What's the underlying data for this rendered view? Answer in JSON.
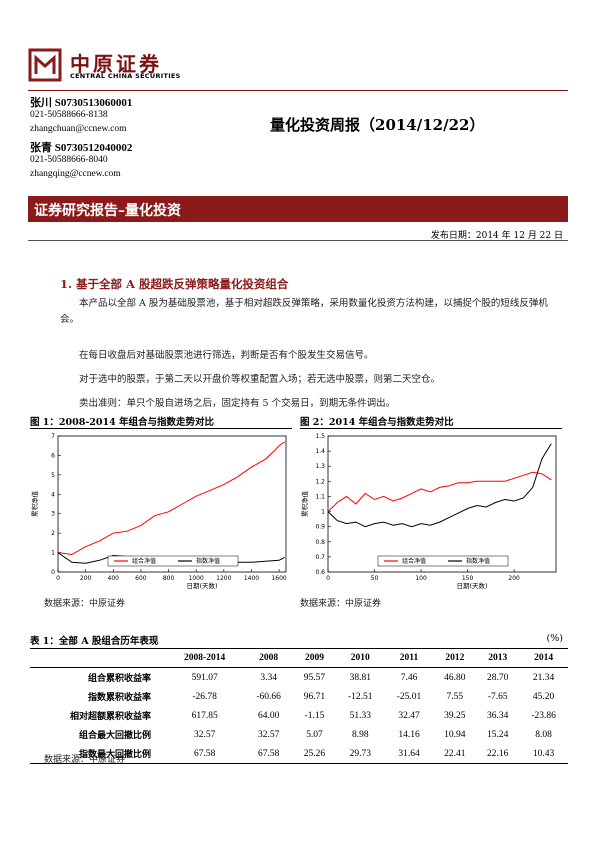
{
  "header": {
    "logo_cn": "中原证券",
    "logo_en": "CENTRAL CHINA SECURITIES",
    "brand_color": "#8b1a1a"
  },
  "analysts": [
    {
      "name": "张川  S0730513060001",
      "phone": "021-50588666-8138",
      "email": "zhangchuan@ccnew.com"
    },
    {
      "name": "张青  S0730512040002",
      "phone": "021-50588666-8040",
      "email": "zhangqing@ccnew.com"
    }
  ],
  "report_title": "量化投资周报（2014/12/22）",
  "banner": "证券研究报告–量化投资",
  "publish_date": "发布日期：2014 年 12 月 22 日",
  "section": {
    "heading": "1. 基于全部 A 股超跌反弹策略量化投资组合",
    "paragraphs": [
      "本产品以全部 A 股为基础股票池，基于相对超跌反弹策略，采用数量化投资方法构建，以捕捉个股的短线反弹机会。",
      "在每日收盘后对基础股票池进行筛选，判断是否有个股发生交易信号。",
      "对于选中的股票，于第二天以开盘价等权重配置入场；若无选中股票，则第二天空仓。",
      "卖出准则：单只个股自进场之后，固定持有 5 个交易日，到期无条件调出。"
    ]
  },
  "figures": {
    "fig1_title": "图 1：2008-2014 年组合与指数走势对比",
    "fig2_title": "图 2：2014 年组合与指数走势对比",
    "source": "数据来源：中原证券"
  },
  "chart_data": [
    {
      "type": "line",
      "title": "图 1：2008-2014 年组合与指数走势对比",
      "xlabel": "日期(天数)",
      "ylabel": "累积净值",
      "xlim": [
        0,
        1650
      ],
      "ylim": [
        0,
        7
      ],
      "x_ticks": [
        0,
        200,
        400,
        600,
        800,
        1000,
        1200,
        1400,
        1600
      ],
      "y_ticks": [
        0,
        1,
        2,
        3,
        4,
        5,
        6,
        7
      ],
      "grid": false,
      "legend_position": "bottom-center",
      "series": [
        {
          "name": "组合净值",
          "color": "#ff0000",
          "x": [
            0,
            100,
            200,
            300,
            400,
            500,
            600,
            700,
            800,
            900,
            1000,
            1100,
            1200,
            1300,
            1400,
            1500,
            1560,
            1600,
            1640
          ],
          "y": [
            1.0,
            0.9,
            1.3,
            1.6,
            2.0,
            2.1,
            2.4,
            2.9,
            3.1,
            3.5,
            3.9,
            4.2,
            4.5,
            4.9,
            5.4,
            5.8,
            6.2,
            6.5,
            6.7
          ]
        },
        {
          "name": "指数净值",
          "color": "#000000",
          "x": [
            0,
            100,
            200,
            300,
            400,
            500,
            600,
            700,
            800,
            900,
            1000,
            1100,
            1200,
            1300,
            1400,
            1500,
            1600,
            1640
          ],
          "y": [
            1.0,
            0.5,
            0.45,
            0.6,
            0.85,
            0.8,
            0.75,
            0.7,
            0.65,
            0.6,
            0.55,
            0.5,
            0.55,
            0.5,
            0.5,
            0.55,
            0.6,
            0.75
          ]
        }
      ]
    },
    {
      "type": "line",
      "title": "图 2：2014 年组合与指数走势对比",
      "xlabel": "日期(天数)",
      "ylabel": "累积净值",
      "xlim": [
        0,
        245
      ],
      "ylim": [
        0.6,
        1.5
      ],
      "x_ticks": [
        0,
        50,
        100,
        150,
        200
      ],
      "y_ticks": [
        0.6,
        0.7,
        0.8,
        0.9,
        1.0,
        1.1,
        1.2,
        1.3,
        1.4,
        1.5
      ],
      "grid": false,
      "legend_position": "bottom-center",
      "series": [
        {
          "name": "组合净值",
          "color": "#ff0000",
          "x": [
            0,
            10,
            20,
            30,
            40,
            50,
            60,
            70,
            80,
            90,
            100,
            110,
            120,
            130,
            140,
            150,
            160,
            170,
            180,
            190,
            200,
            210,
            220,
            230,
            240
          ],
          "y": [
            1.0,
            1.06,
            1.1,
            1.05,
            1.12,
            1.08,
            1.1,
            1.07,
            1.09,
            1.12,
            1.15,
            1.13,
            1.16,
            1.17,
            1.19,
            1.19,
            1.2,
            1.2,
            1.2,
            1.2,
            1.22,
            1.24,
            1.26,
            1.25,
            1.21
          ]
        },
        {
          "name": "指数净值",
          "color": "#000000",
          "x": [
            0,
            10,
            20,
            30,
            40,
            50,
            60,
            70,
            80,
            90,
            100,
            110,
            120,
            130,
            140,
            150,
            160,
            170,
            180,
            190,
            200,
            210,
            220,
            230,
            240
          ],
          "y": [
            1.0,
            0.94,
            0.92,
            0.93,
            0.9,
            0.92,
            0.93,
            0.91,
            0.92,
            0.9,
            0.92,
            0.91,
            0.93,
            0.96,
            0.99,
            1.02,
            1.04,
            1.03,
            1.06,
            1.08,
            1.07,
            1.09,
            1.16,
            1.35,
            1.45
          ]
        }
      ]
    }
  ],
  "table": {
    "title": "表 1：全部 A 股组合历年表现",
    "unit": "(%)",
    "columns": [
      "",
      "2008-2014",
      "2008",
      "2009",
      "2010",
      "2011",
      "2012",
      "2013",
      "2014"
    ],
    "rows": [
      {
        "label": "组合累积收益率",
        "values": [
          "591.07",
          "3.34",
          "95.57",
          "38.81",
          "7.46",
          "46.80",
          "28.70",
          "21.34"
        ]
      },
      {
        "label": "指数累积收益率",
        "values": [
          "-26.78",
          "-60.66",
          "96.71",
          "-12.51",
          "-25.01",
          "7.55",
          "-7.65",
          "45.20"
        ]
      },
      {
        "label": "相对超额累积收益率",
        "values": [
          "617.85",
          "64.00",
          "-1.15",
          "51.33",
          "32.47",
          "39.25",
          "36.34",
          "-23.86"
        ]
      },
      {
        "label": "组合最大回撤比例",
        "values": [
          "32.57",
          "32.57",
          "5.07",
          "8.98",
          "14.16",
          "10.94",
          "15.24",
          "8.08"
        ]
      },
      {
        "label": "指数最大回撤比例",
        "values": [
          "67.58",
          "67.58",
          "25.26",
          "29.73",
          "31.64",
          "22.41",
          "22.16",
          "10.43"
        ]
      }
    ],
    "source": "数据来源：中原证券"
  }
}
